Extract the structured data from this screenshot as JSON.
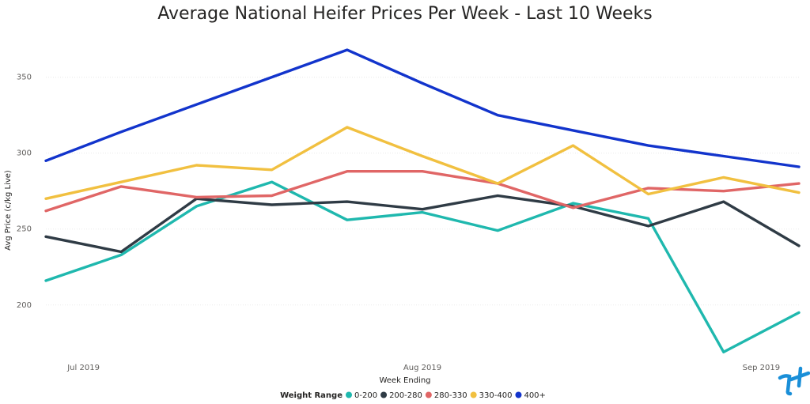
{
  "chart_data": {
    "type": "line",
    "title": "Average National Heifer Prices Per Week - Last 10 Weeks",
    "xlabel": "Week Ending",
    "ylabel": "Avg Price (c/kg Live)",
    "x_tick_labels": [
      "Jul 2019",
      "Aug 2019",
      "Sep 2019"
    ],
    "y_ticks": [
      200,
      250,
      300,
      350
    ],
    "ylim": [
      165,
      380
    ],
    "grid": true,
    "legend": {
      "title": "Weight Range",
      "position": "bottom-center"
    },
    "series": [
      {
        "name": "0-200",
        "color": "#1FB8AE",
        "values": [
          216,
          233,
          265,
          281,
          256,
          261,
          249,
          267,
          257,
          169,
          195
        ]
      },
      {
        "name": "200-280",
        "color": "#2F3B45",
        "values": [
          245,
          235,
          270,
          266,
          268,
          263,
          272,
          265,
          252,
          268,
          239
        ]
      },
      {
        "name": "280-330",
        "color": "#E06666",
        "values": [
          262,
          278,
          271,
          272,
          288,
          288,
          280,
          264,
          277,
          275,
          280
        ]
      },
      {
        "name": "330-400",
        "color": "#F1C040",
        "values": [
          270,
          281,
          292,
          289,
          317,
          298,
          280,
          305,
          273,
          284,
          274
        ]
      },
      {
        "name": "400+",
        "color": "#1234CC",
        "values": [
          295,
          314,
          332,
          350,
          368,
          346,
          325,
          315,
          305,
          298,
          291
        ]
      }
    ]
  }
}
